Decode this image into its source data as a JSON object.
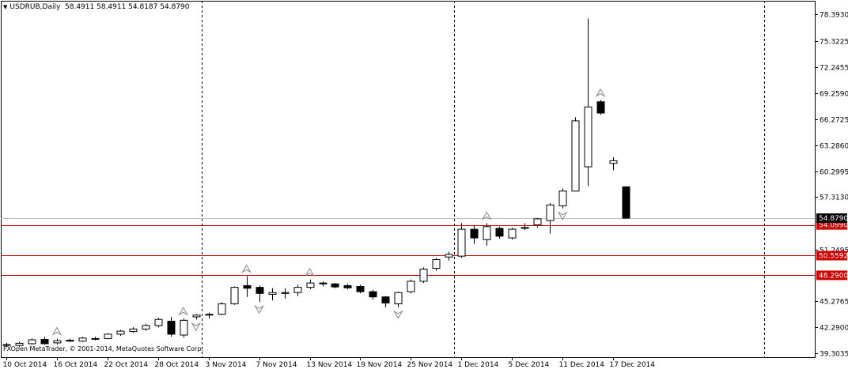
{
  "window": {
    "symbol_timeframe": "USDRUB,Daily",
    "ohlc_readout": "58.4911 58.4911 54.8187 54.8790",
    "copyright": "FXOpen MetaTrader, © 2001-2014, MetaQuotes Software Corp.",
    "dropdown_icon": "triangle-down-icon"
  },
  "colors": {
    "background": "#ffffff",
    "candle_outline": "#000000",
    "bull_fill": "#ffffff",
    "bear_fill": "#000000",
    "level_line": "#cc0000",
    "level_label_bg": "#cc0000",
    "level_label_text": "#ffffff",
    "price_line": "#c0c0c0",
    "price_label_bg": "#000000",
    "price_label_text": "#ffffff",
    "separator": "#000000",
    "fractal": "#888888"
  },
  "chart_data": {
    "type": "candlestick",
    "y_range": [
      39.3035,
      79.6
    ],
    "y_ticks": [
      "78.3930",
      "75.3225",
      "72.2455",
      "69.2590",
      "66.2725",
      "63.2860",
      "60.2995",
      "57.3130",
      "51.2495",
      "45.2765",
      "42.2900",
      "39.3035"
    ],
    "x_ticks": [
      "10 Oct 2014",
      "16 Oct 2014",
      "22 Oct 2014",
      "28 Oct 2014",
      "3 Nov 2014",
      "7 Nov 2014",
      "13 Nov 2014",
      "19 Nov 2014",
      "25 Nov 2014",
      "1 Dec 2014",
      "5 Dec 2014",
      "11 Dec 2014",
      "17 Dec 2014"
    ],
    "x_tick_candles": [
      0,
      4,
      8,
      12,
      16,
      20,
      24,
      28,
      32,
      36,
      40,
      44,
      48
    ],
    "separator_candles": [
      16,
      36
    ],
    "separator_extra": 60,
    "levels": [
      {
        "label": "54.0990",
        "value": 54.099
      },
      {
        "label": "50.5592",
        "value": 50.5592
      },
      {
        "label": "48.2900",
        "value": 48.29
      }
    ],
    "current_price": {
      "label": "54.8790",
      "value": 54.879
    },
    "candles": [
      {
        "o": 40.3,
        "h": 40.5,
        "l": 40.0,
        "c": 40.25
      },
      {
        "o": 40.2,
        "h": 40.6,
        "l": 40.0,
        "c": 40.45
      },
      {
        "o": 40.4,
        "h": 41.0,
        "l": 40.3,
        "c": 40.85
      },
      {
        "o": 40.9,
        "h": 41.2,
        "l": 40.3,
        "c": 40.4
      },
      {
        "o": 40.5,
        "h": 41.0,
        "l": 40.3,
        "c": 40.75
      },
      {
        "o": 40.8,
        "h": 41.0,
        "l": 40.6,
        "c": 40.7
      },
      {
        "o": 40.7,
        "h": 41.2,
        "l": 40.6,
        "c": 41.05
      },
      {
        "o": 41.0,
        "h": 41.2,
        "l": 40.8,
        "c": 40.95
      },
      {
        "o": 41.0,
        "h": 41.6,
        "l": 40.9,
        "c": 41.5
      },
      {
        "o": 41.5,
        "h": 42.0,
        "l": 41.3,
        "c": 41.85
      },
      {
        "o": 41.8,
        "h": 42.3,
        "l": 41.7,
        "c": 42.1
      },
      {
        "o": 42.1,
        "h": 42.7,
        "l": 41.9,
        "c": 42.5
      },
      {
        "o": 42.5,
        "h": 43.4,
        "l": 42.3,
        "c": 43.2
      },
      {
        "o": 43.0,
        "h": 43.5,
        "l": 41.2,
        "c": 41.5
      },
      {
        "o": 41.4,
        "h": 43.3,
        "l": 41.1,
        "c": 43.1
      },
      {
        "o": 43.5,
        "h": 43.8,
        "l": 43.2,
        "c": 43.7
      },
      {
        "o": 43.7,
        "h": 44.0,
        "l": 43.3,
        "c": 43.8
      },
      {
        "o": 43.8,
        "h": 45.2,
        "l": 43.7,
        "c": 45.0
      },
      {
        "o": 45.0,
        "h": 47.0,
        "l": 44.9,
        "c": 46.9
      },
      {
        "o": 47.1,
        "h": 48.2,
        "l": 45.8,
        "c": 46.8
      },
      {
        "o": 46.9,
        "h": 47.1,
        "l": 45.2,
        "c": 46.2
      },
      {
        "o": 46.1,
        "h": 46.8,
        "l": 45.4,
        "c": 46.3
      },
      {
        "o": 46.2,
        "h": 46.8,
        "l": 45.6,
        "c": 46.3
      },
      {
        "o": 46.3,
        "h": 47.2,
        "l": 45.9,
        "c": 46.9
      },
      {
        "o": 46.9,
        "h": 47.8,
        "l": 46.7,
        "c": 47.4
      },
      {
        "o": 47.4,
        "h": 47.6,
        "l": 47.0,
        "c": 47.3
      },
      {
        "o": 47.3,
        "h": 47.4,
        "l": 46.8,
        "c": 46.95
      },
      {
        "o": 47.1,
        "h": 47.3,
        "l": 46.7,
        "c": 46.85
      },
      {
        "o": 47.0,
        "h": 47.2,
        "l": 46.2,
        "c": 46.4
      },
      {
        "o": 46.4,
        "h": 46.6,
        "l": 45.5,
        "c": 45.8
      },
      {
        "o": 45.8,
        "h": 45.9,
        "l": 44.6,
        "c": 45.1
      },
      {
        "o": 45.0,
        "h": 46.4,
        "l": 44.6,
        "c": 46.3
      },
      {
        "o": 46.4,
        "h": 47.8,
        "l": 46.2,
        "c": 47.6
      },
      {
        "o": 47.6,
        "h": 49.2,
        "l": 47.4,
        "c": 49.0
      },
      {
        "o": 49.1,
        "h": 50.3,
        "l": 48.8,
        "c": 50.1
      },
      {
        "o": 50.4,
        "h": 51.0,
        "l": 50.0,
        "c": 50.7
      },
      {
        "o": 50.5,
        "h": 54.3,
        "l": 50.3,
        "c": 53.6
      },
      {
        "o": 53.6,
        "h": 54.1,
        "l": 51.9,
        "c": 52.6
      },
      {
        "o": 52.4,
        "h": 54.3,
        "l": 51.7,
        "c": 53.9
      },
      {
        "o": 53.7,
        "h": 53.9,
        "l": 52.5,
        "c": 52.8
      },
      {
        "o": 52.6,
        "h": 53.8,
        "l": 52.4,
        "c": 53.6
      },
      {
        "o": 53.7,
        "h": 54.3,
        "l": 53.5,
        "c": 53.8
      },
      {
        "o": 54.1,
        "h": 54.9,
        "l": 53.8,
        "c": 54.8
      },
      {
        "o": 54.6,
        "h": 56.6,
        "l": 53.1,
        "c": 56.4
      },
      {
        "o": 56.3,
        "h": 58.3,
        "l": 56.0,
        "c": 58.0
      },
      {
        "o": 58.0,
        "h": 66.5,
        "l": 58.0,
        "c": 66.1
      },
      {
        "o": 60.8,
        "h": 77.9,
        "l": 58.6,
        "c": 67.7
      },
      {
        "o": 68.3,
        "h": 68.5,
        "l": 66.8,
        "c": 67.0
      },
      {
        "o": 61.2,
        "h": 61.9,
        "l": 60.4,
        "c": 61.5
      },
      {
        "o": 58.4911,
        "h": 58.4911,
        "l": 54.8187,
        "c": 54.879
      }
    ],
    "fractals": [
      {
        "candle": 4,
        "dir": "up"
      },
      {
        "candle": 14,
        "dir": "up"
      },
      {
        "candle": 15,
        "dir": "down"
      },
      {
        "candle": 19,
        "dir": "up"
      },
      {
        "candle": 20,
        "dir": "down"
      },
      {
        "candle": 24,
        "dir": "up"
      },
      {
        "candle": 31,
        "dir": "down"
      },
      {
        "candle": 38,
        "dir": "up"
      },
      {
        "candle": 44,
        "dir": "down"
      },
      {
        "candle": 47,
        "dir": "up"
      }
    ]
  }
}
